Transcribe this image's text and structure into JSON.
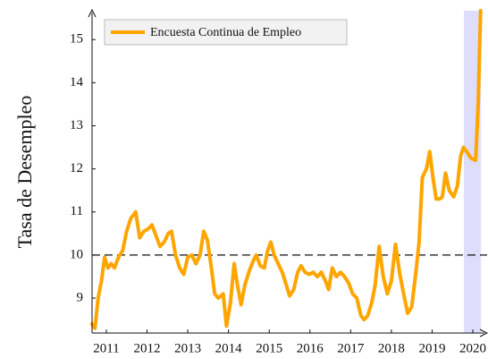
{
  "chart_data": {
    "type": "line",
    "y_label": "Tasa de Desempleo",
    "xlim": [
      2010.65,
      2020.35
    ],
    "ylim": [
      8.19,
      15.67
    ],
    "xticks": [
      2011,
      2012,
      2013,
      2014,
      2015,
      2016,
      2017,
      2018,
      2019,
      2020
    ],
    "yticks": [
      9,
      10,
      11,
      12,
      13,
      14,
      15
    ],
    "reference_line": 10,
    "shaded_region": [
      2019.78,
      2020.2
    ],
    "legend": "top-left",
    "series": [
      {
        "name": "Encuesta Continua de Empleo",
        "color": "#ffa500",
        "x": [
          2010.65,
          2010.72,
          2010.8,
          2010.88,
          2010.96,
          2011.04,
          2011.12,
          2011.2,
          2011.3,
          2011.4,
          2011.5,
          2011.6,
          2011.72,
          2011.82,
          2011.92,
          2012.02,
          2012.12,
          2012.22,
          2012.32,
          2012.42,
          2012.52,
          2012.6,
          2012.7,
          2012.8,
          2012.9,
          2013.0,
          2013.1,
          2013.2,
          2013.3,
          2013.39,
          2013.48,
          2013.58,
          2013.66,
          2013.75,
          2013.87,
          2013.95,
          2014.05,
          2014.14,
          2014.22,
          2014.31,
          2014.4,
          2014.5,
          2014.6,
          2014.68,
          2014.78,
          2014.88,
          2014.96,
          2015.04,
          2015.12,
          2015.22,
          2015.32,
          2015.42,
          2015.5,
          2015.6,
          2015.7,
          2015.78,
          2015.88,
          2015.98,
          2016.08,
          2016.18,
          2016.28,
          2016.38,
          2016.46,
          2016.55,
          2016.65,
          2016.75,
          2016.85,
          2016.95,
          2017.05,
          2017.15,
          2017.25,
          2017.33,
          2017.42,
          2017.52,
          2017.6,
          2017.7,
          2017.8,
          2017.9,
          2018.0,
          2018.1,
          2018.2,
          2018.3,
          2018.4,
          2018.5,
          2018.6,
          2018.68,
          2018.76,
          2018.86,
          2018.94,
          2019.02,
          2019.1,
          2019.18,
          2019.25,
          2019.33,
          2019.42,
          2019.53,
          2019.62,
          2019.7,
          2019.77,
          2019.85,
          2019.95,
          2020.07,
          2020.13,
          2020.19
        ],
        "values": [
          8.4,
          8.3,
          9.0,
          9.4,
          9.95,
          9.7,
          9.8,
          9.7,
          9.95,
          10.1,
          10.55,
          10.85,
          11.0,
          10.4,
          10.55,
          10.6,
          10.7,
          10.45,
          10.2,
          10.3,
          10.5,
          10.55,
          10.0,
          9.7,
          9.55,
          9.95,
          10.0,
          9.8,
          10.0,
          10.55,
          10.35,
          9.7,
          9.1,
          9.0,
          9.1,
          8.35,
          8.9,
          9.8,
          9.3,
          8.85,
          9.3,
          9.6,
          9.85,
          10.0,
          9.75,
          9.7,
          10.1,
          10.3,
          10.0,
          9.8,
          9.6,
          9.3,
          9.05,
          9.2,
          9.6,
          9.75,
          9.6,
          9.55,
          9.6,
          9.5,
          9.6,
          9.4,
          9.2,
          9.7,
          9.5,
          9.6,
          9.5,
          9.35,
          9.1,
          9.0,
          8.6,
          8.5,
          8.6,
          8.9,
          9.3,
          10.2,
          9.5,
          9.1,
          9.4,
          10.25,
          9.6,
          9.1,
          8.65,
          8.8,
          9.6,
          10.3,
          11.8,
          12.0,
          12.4,
          11.8,
          11.3,
          11.3,
          11.35,
          11.9,
          11.5,
          11.35,
          11.6,
          12.3,
          12.5,
          12.4,
          12.25,
          12.2,
          13.5,
          15.67
        ]
      }
    ]
  }
}
